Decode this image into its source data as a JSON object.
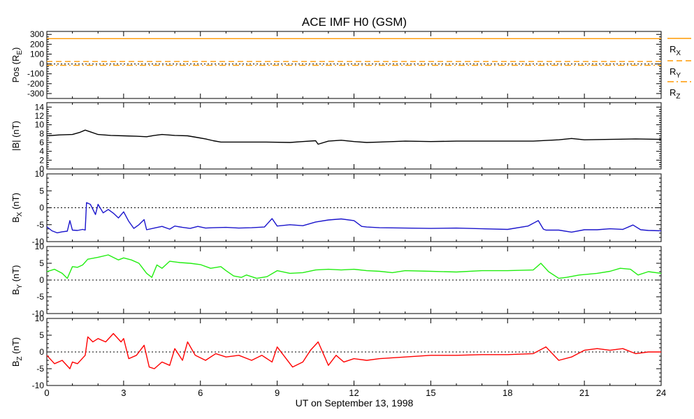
{
  "chart_data": {
    "type": "line",
    "title": "ACE IMF H0 (GSM)",
    "xlabel": "UT on September 13, 1998",
    "xlim": [
      0,
      24
    ],
    "xticks": [
      "0",
      "3",
      "6",
      "9",
      "12",
      "15",
      "18",
      "21",
      "24"
    ],
    "panels": [
      {
        "id": "pos",
        "ylabel": "Pos (R_E)",
        "ylabel_main": "Pos (R",
        "ylabel_sub": "E",
        "ylabel_end": ")",
        "ylim": [
          -350,
          330
        ],
        "yticks": [
          "300",
          "200",
          "100",
          "0",
          "-100",
          "-200",
          "-300"
        ],
        "zero_line": true,
        "legend": [
          {
            "main": "R",
            "sub": "X"
          },
          {
            "main": "R",
            "sub": "Y"
          },
          {
            "main": "R",
            "sub": "Z"
          }
        ],
        "series": [
          {
            "name": "R_X",
            "color": "#ff9900",
            "style": "solid",
            "x": [
              0,
              24
            ],
            "y": [
              257,
              257
            ]
          },
          {
            "name": "R_Y",
            "color": "#ff9900",
            "style": "dashed",
            "x": [
              0,
              24
            ],
            "y": [
              25,
              25
            ]
          },
          {
            "name": "R_Z",
            "color": "#ff9900",
            "style": "dashdot",
            "x": [
              0,
              24
            ],
            "y": [
              -14,
              -14
            ]
          }
        ]
      },
      {
        "id": "bmag",
        "ylabel_main": "|B| (nT)",
        "ylim": [
          0,
          15
        ],
        "yticks": [
          "14",
          "12",
          "10",
          "8",
          "6",
          "4",
          "2",
          "0"
        ],
        "zero_line": false,
        "series": [
          {
            "name": "|B|",
            "color": "#000000",
            "style": "solid",
            "x": [
              0,
              0.5,
              1.0,
              1.3,
              1.5,
              1.7,
              2.0,
              2.5,
              3.0,
              3.5,
              3.9,
              4.2,
              4.5,
              5.0,
              5.5,
              5.9,
              6.2,
              6.5,
              6.8,
              7.5,
              8.5,
              9.5,
              10.0,
              10.5,
              10.6,
              11.0,
              11.5,
              12.0,
              12.5,
              13.0,
              14.0,
              15.0,
              16.0,
              17.0,
              18.0,
              19.0,
              20.0,
              20.5,
              21.0,
              22.0,
              23.0,
              24.0
            ],
            "y": [
              7.5,
              7.7,
              7.8,
              8.3,
              8.8,
              8.4,
              7.8,
              7.6,
              7.5,
              7.4,
              7.3,
              7.6,
              7.8,
              7.6,
              7.5,
              7.1,
              6.8,
              6.4,
              6.1,
              6.1,
              6.1,
              6.0,
              6.2,
              6.4,
              5.6,
              6.3,
              6.5,
              6.2,
              6.0,
              6.1,
              6.3,
              6.2,
              6.3,
              6.3,
              6.3,
              6.3,
              6.6,
              6.9,
              6.6,
              6.7,
              6.8,
              6.7
            ]
          }
        ]
      },
      {
        "id": "bx",
        "ylabel_main": "B",
        "ylabel_sub": "X",
        "ylabel_end": " (nT)",
        "ylim": [
          -10,
          10
        ],
        "yticks": [
          "10",
          "5",
          "0",
          "-5",
          "-10"
        ],
        "zero_line": true,
        "series": [
          {
            "name": "B_X",
            "color": "#1a14cc",
            "style": "solid",
            "x": [
              0,
              0.2,
              0.4,
              0.6,
              0.8,
              0.9,
              1.0,
              1.2,
              1.4,
              1.5,
              1.55,
              1.7,
              1.9,
              2.0,
              2.2,
              2.4,
              2.6,
              2.8,
              3.0,
              3.2,
              3.4,
              3.6,
              3.8,
              3.9,
              4.2,
              4.5,
              4.8,
              5.0,
              5.3,
              5.6,
              5.9,
              6.2,
              6.5,
              7.0,
              7.5,
              8.0,
              8.5,
              8.8,
              9.0,
              9.5,
              10.0,
              10.5,
              11.0,
              11.5,
              12.0,
              12.3,
              12.5,
              13.0,
              14.0,
              15.0,
              16.0,
              17.0,
              18.0,
              18.8,
              19.2,
              19.4,
              19.5,
              20.0,
              20.5,
              21.0,
              21.5,
              22.0,
              22.5,
              22.9,
              23.2,
              23.5,
              24.0
            ],
            "y": [
              -5.6,
              -6.8,
              -7.4,
              -7.1,
              -6.9,
              -3.8,
              -6.6,
              -6.7,
              -6.4,
              -6.6,
              1.5,
              1.0,
              -2.0,
              1.0,
              -1.5,
              -0.5,
              -1.6,
              -3.0,
              -1.2,
              -4.0,
              -6.1,
              -5.0,
              -3.5,
              -6.5,
              -6.0,
              -5.5,
              -6.3,
              -5.4,
              -5.8,
              -6.1,
              -5.5,
              -6.0,
              -5.9,
              -5.8,
              -6.0,
              -5.9,
              -5.7,
              -3.2,
              -5.4,
              -5.0,
              -5.3,
              -4.2,
              -3.6,
              -3.3,
              -3.8,
              -5.5,
              -5.7,
              -5.9,
              -6.0,
              -6.1,
              -6.0,
              -6.2,
              -6.4,
              -5.4,
              -3.8,
              -6.3,
              -6.6,
              -6.6,
              -7.2,
              -6.5,
              -6.5,
              -6.2,
              -6.4,
              -5.1,
              -6.5,
              -6.7,
              -6.8
            ]
          }
        ]
      },
      {
        "id": "by",
        "ylabel_main": "B",
        "ylabel_sub": "Y",
        "ylabel_end": " (nT)",
        "ylim": [
          -10,
          10
        ],
        "yticks": [
          "10",
          "5",
          "0",
          "-5",
          "-10"
        ],
        "zero_line": true,
        "series": [
          {
            "name": "B_Y",
            "color": "#22ee11",
            "style": "solid",
            "x": [
              0,
              0.3,
              0.6,
              0.8,
              1.0,
              1.2,
              1.4,
              1.6,
              2.0,
              2.4,
              2.8,
              3.0,
              3.3,
              3.6,
              3.9,
              4.1,
              4.3,
              4.5,
              4.8,
              5.2,
              5.6,
              6.0,
              6.4,
              6.8,
              7.0,
              7.3,
              7.6,
              7.8,
              8.2,
              8.6,
              9.0,
              9.5,
              10.0,
              10.5,
              11.0,
              11.5,
              12.0,
              12.5,
              13.0,
              13.5,
              14.0,
              15.0,
              16.0,
              17.0,
              18.0,
              19.0,
              19.3,
              19.6,
              20.0,
              20.3,
              20.8,
              21.5,
              22.0,
              22.4,
              22.8,
              23.1,
              23.5,
              24.0
            ],
            "y": [
              2.5,
              3.2,
              2.0,
              0.5,
              4.0,
              3.8,
              4.5,
              6.2,
              6.8,
              7.5,
              6.0,
              6.6,
              6.0,
              5.0,
              2.0,
              0.8,
              4.5,
              3.5,
              5.6,
              5.2,
              5.0,
              4.6,
              3.5,
              4.0,
              2.8,
              1.2,
              0.8,
              1.5,
              0.5,
              1.0,
              2.8,
              2.0,
              2.2,
              3.0,
              3.2,
              3.0,
              3.2,
              2.8,
              2.6,
              2.2,
              2.8,
              2.6,
              2.4,
              2.8,
              2.8,
              3.0,
              5.0,
              2.5,
              0.5,
              0.8,
              1.5,
              2.0,
              2.6,
              3.5,
              3.2,
              1.5,
              2.5,
              2.0
            ]
          }
        ]
      },
      {
        "id": "bz",
        "ylabel_main": "B",
        "ylabel_sub": "Z",
        "ylabel_end": " (nT)",
        "ylim": [
          -10,
          10
        ],
        "yticks": [
          "10",
          "5",
          "0",
          "-5",
          "-10"
        ],
        "zero_line": true,
        "series": [
          {
            "name": "B_Z",
            "color": "#ff0000",
            "style": "solid",
            "x": [
              0,
              0.3,
              0.6,
              0.9,
              1.0,
              1.2,
              1.5,
              1.6,
              1.8,
              2.0,
              2.3,
              2.6,
              2.9,
              3.0,
              3.2,
              3.5,
              3.8,
              4.0,
              4.2,
              4.5,
              4.8,
              5.0,
              5.3,
              5.5,
              5.8,
              6.2,
              6.6,
              7.0,
              7.5,
              8.0,
              8.4,
              8.8,
              9.0,
              9.3,
              9.6,
              10.0,
              10.3,
              10.6,
              11.0,
              11.3,
              11.6,
              12.0,
              12.5,
              13.0,
              14.0,
              15.0,
              16.0,
              17.0,
              18.0,
              19.0,
              19.5,
              20.0,
              20.5,
              21.0,
              21.5,
              22.0,
              22.5,
              23.0,
              23.5,
              24.0
            ],
            "y": [
              -1.0,
              -3.5,
              -2.5,
              -5.0,
              -3.0,
              -3.5,
              -1.0,
              4.5,
              3.0,
              4.0,
              3.0,
              5.5,
              3.0,
              4.0,
              -2.0,
              -1.0,
              2.0,
              -4.5,
              -5.0,
              -3.0,
              -4.0,
              1.0,
              -2.5,
              3.0,
              -1.0,
              -2.5,
              -0.5,
              -1.5,
              -1.0,
              -2.5,
              -1.0,
              -3.0,
              1.5,
              -1.5,
              -4.5,
              -3.0,
              0.5,
              3.0,
              -4.0,
              -1.0,
              -3.0,
              -2.0,
              -2.5,
              -2.0,
              -1.5,
              -1.0,
              -1.0,
              -0.8,
              -0.8,
              -0.5,
              1.5,
              -2.5,
              -1.5,
              0.5,
              1.0,
              0.5,
              1.0,
              -0.5,
              0.0,
              0.0
            ]
          }
        ]
      }
    ]
  }
}
